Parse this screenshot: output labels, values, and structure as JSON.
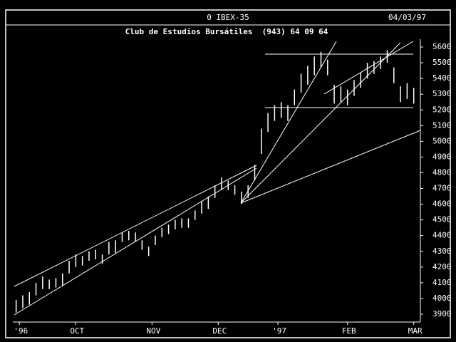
{
  "chart_data": {
    "type": "hilo",
    "title": "0 IBEX-35",
    "date": "04/03/97",
    "subtitle": "Club de Estudios Bursátiles  (943) 64 09 64",
    "color": "#ffffff",
    "x": [
      0,
      2,
      4,
      6,
      8,
      10,
      12,
      14,
      16,
      18,
      20,
      22,
      24,
      26,
      28,
      30,
      32,
      34,
      36,
      38,
      40,
      42,
      44,
      46,
      48,
      50,
      52,
      54,
      56,
      58,
      60,
      62,
      64,
      66,
      68,
      70,
      72,
      74,
      76,
      78,
      80,
      82,
      84,
      86,
      88,
      90,
      92,
      94,
      96,
      98,
      100,
      102,
      104,
      106,
      108,
      110,
      112,
      114,
      116,
      118,
      120
    ],
    "high": [
      3990,
      4020,
      4040,
      4100,
      4140,
      4120,
      4130,
      4160,
      4240,
      4280,
      4270,
      4300,
      4310,
      4280,
      4360,
      4370,
      4420,
      4430,
      4420,
      4370,
      4330,
      4400,
      4450,
      4470,
      4500,
      4510,
      4510,
      4560,
      4620,
      4650,
      4720,
      4770,
      4750,
      4720,
      4680,
      4720,
      4850,
      5080,
      5180,
      5230,
      5250,
      5230,
      5330,
      5430,
      5480,
      5540,
      5570,
      5520,
      5360,
      5350,
      5330,
      5390,
      5440,
      5500,
      5510,
      5540,
      5580,
      5470,
      5350,
      5370,
      5340
    ],
    "low": [
      3910,
      3940,
      3960,
      4020,
      4060,
      4060,
      4070,
      4080,
      4160,
      4200,
      4210,
      4240,
      4250,
      4220,
      4280,
      4290,
      4360,
      4370,
      4360,
      4310,
      4270,
      4340,
      4390,
      4410,
      4440,
      4450,
      4450,
      4500,
      4540,
      4570,
      4640,
      4690,
      4690,
      4660,
      4600,
      4640,
      4750,
      4920,
      5060,
      5130,
      5150,
      5130,
      5230,
      5310,
      5360,
      5420,
      5470,
      5420,
      5240,
      5250,
      5230,
      5290,
      5340,
      5400,
      5430,
      5460,
      5500,
      5370,
      5250,
      5270,
      5240
    ],
    "xlim": [
      -1,
      122
    ],
    "xticks": [
      {
        "value": 1,
        "label": "'96"
      },
      {
        "value": 18,
        "label": "OCT"
      },
      {
        "value": 41,
        "label": "NOV"
      },
      {
        "value": 61,
        "label": "DEC"
      },
      {
        "value": 79,
        "label": "'97"
      },
      {
        "value": 100,
        "label": "FEB"
      },
      {
        "value": 120,
        "label": "MAR"
      }
    ],
    "ylim": [
      3850,
      5650
    ],
    "yticks": [
      3900,
      4000,
      4100,
      4200,
      4300,
      4400,
      4500,
      4600,
      4700,
      4800,
      4900,
      5000,
      5100,
      5200,
      5300,
      5400,
      5500,
      5600
    ]
  }
}
